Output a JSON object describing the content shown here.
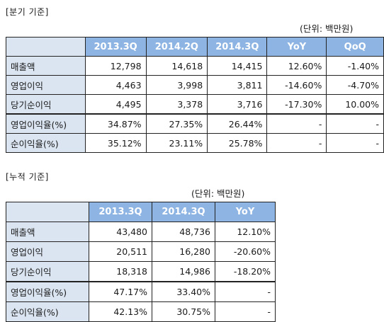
{
  "quarterly": {
    "title": "[분기 기준]",
    "unit": "(단위: 백만원)",
    "headers": [
      "",
      "2013.3Q",
      "2014.2Q",
      "2014.3Q",
      "YoY",
      "QoQ"
    ],
    "rows": [
      [
        "매출액",
        "12,798",
        "14,618",
        "14,415",
        "12.60%",
        "-1.40%"
      ],
      [
        "영업이익",
        "4,463",
        "3,998",
        "3,811",
        "-14.60%",
        "-4.70%"
      ],
      [
        "당기순이익",
        "4,495",
        "3,378",
        "3,716",
        "-17.30%",
        "10.00%"
      ],
      [
        "영업이익율(%)",
        "34.87%",
        "27.35%",
        "26.44%",
        "-",
        "-"
      ],
      [
        "순이익율(%)",
        "35.12%",
        "23.11%",
        "25.78%",
        "-",
        "-"
      ]
    ]
  },
  "cumulative": {
    "title": "[누적 기준]",
    "unit": "(단위: 백만원)",
    "headers": [
      "",
      "2013.3Q",
      "2014.3Q",
      "YoY"
    ],
    "rows": [
      [
        "매출액",
        "43,480",
        "48,736",
        "12.10%"
      ],
      [
        "영업이익",
        "20,511",
        "16,280",
        "-20.60%"
      ],
      [
        "당기순이익",
        "18,318",
        "14,986",
        "-18.20%"
      ],
      [
        "영업이익율(%)",
        "47.17%",
        "33.40%",
        "-"
      ],
      [
        "순이익율(%)",
        "42.13%",
        "30.75%",
        "-"
      ]
    ]
  },
  "colors": {
    "header_bg": "#8eb4e3",
    "label_bg": "#dbe5f1",
    "border": "#222222"
  }
}
